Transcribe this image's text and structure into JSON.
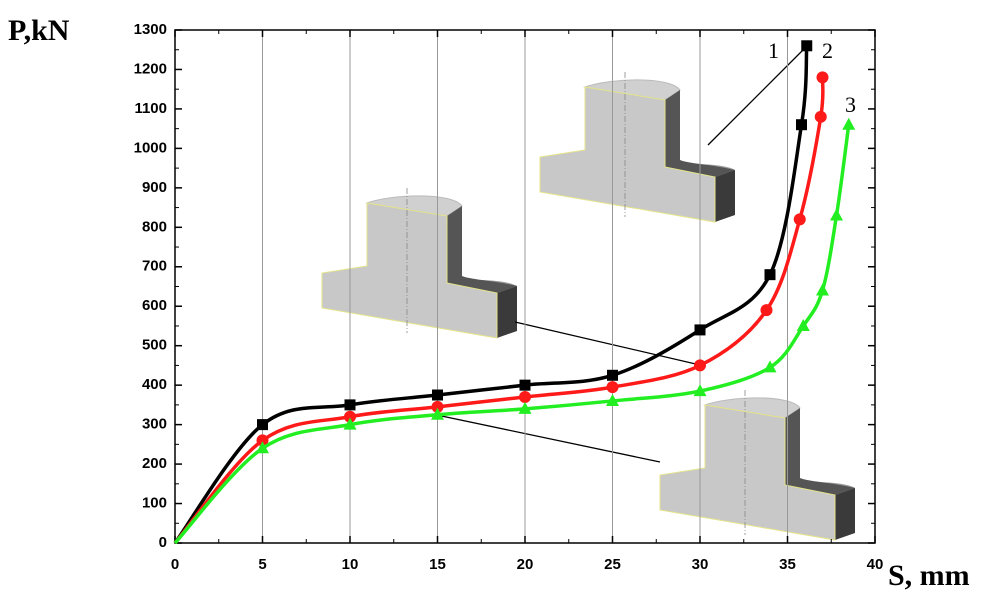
{
  "chart_data": {
    "type": "line",
    "y_label": "P,kN",
    "x_label": "S, mm",
    "xlim": [
      0,
      40
    ],
    "xticks": [
      0,
      5,
      10,
      15,
      20,
      25,
      30,
      35,
      40
    ],
    "ylim": [
      0,
      1300
    ],
    "yticks": [
      0,
      100,
      200,
      300,
      400,
      500,
      600,
      700,
      800,
      900,
      1000,
      1100,
      1200,
      1300
    ],
    "grid": "x",
    "series": [
      {
        "name": "1",
        "color": "#000000",
        "marker": "square",
        "x": [
          0,
          5,
          10,
          15,
          20,
          25,
          30,
          34,
          35.8,
          36.1
        ],
        "values": [
          0,
          300,
          350,
          375,
          400,
          425,
          540,
          680,
          1060,
          1260
        ]
      },
      {
        "name": "2",
        "color": "#ff1a1a",
        "marker": "circle",
        "x": [
          0,
          5,
          10,
          15,
          20,
          25,
          30,
          33.8,
          35.7,
          36.9,
          37
        ],
        "values": [
          0,
          260,
          320,
          345,
          370,
          395,
          450,
          590,
          820,
          1080,
          1180
        ]
      },
      {
        "name": "3",
        "color": "#22ee22",
        "marker": "triangle",
        "x": [
          0,
          5,
          10,
          15,
          20,
          25,
          30,
          34,
          35.9,
          37,
          37.8,
          38.5
        ],
        "values": [
          0,
          240,
          300,
          325,
          340,
          360,
          385,
          445,
          550,
          640,
          830,
          1060
        ]
      }
    ]
  }
}
